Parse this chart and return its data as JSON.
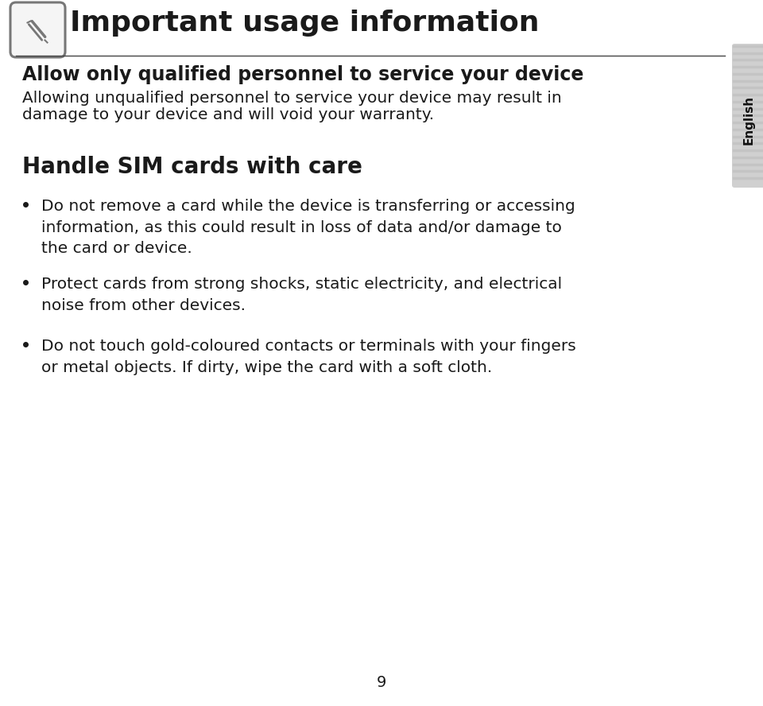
{
  "bg_color": "#ffffff",
  "title": "Important usage information",
  "title_fontsize": 26,
  "icon_color": "#777777",
  "section1_heading": "Allow only qualified personnel to service your device",
  "section1_heading_fontsize": 17,
  "section1_body_line1": "Allowing unqualified personnel to service your device may result in",
  "section1_body_line2": "damage to your device and will void your warranty.",
  "section1_body_fontsize": 14.5,
  "section2_heading": "Handle SIM cards with care",
  "section2_heading_fontsize": 20,
  "bullets": [
    "Do not remove a card while the device is transferring or accessing\ninformation, as this could result in loss of data and/or damage to\nthe card or device.",
    "Protect cards from strong shocks, static electricity, and electrical\nnoise from other devices.",
    "Do not touch gold-coloured contacts or terminals with your fingers\nor metal objects. If dirty, wipe the card with a soft cloth."
  ],
  "bullet_fontsize": 14.5,
  "english_tab_text": "English",
  "page_number": "9",
  "line_color": "#444444",
  "text_color": "#1a1a1a",
  "tab_bg": "#c8c8c8",
  "tab_stripe_color": "#b0b0b0"
}
